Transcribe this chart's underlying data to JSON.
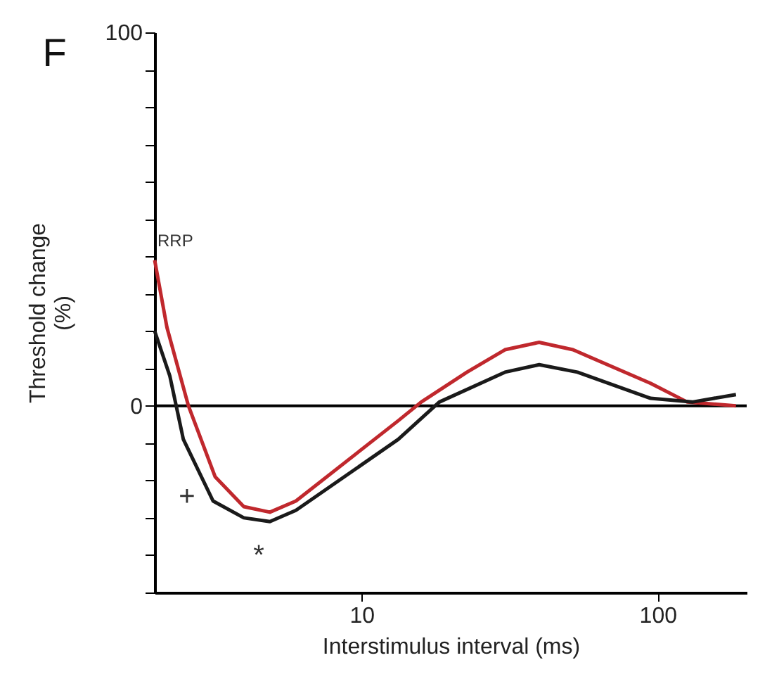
{
  "chart_data": {
    "type": "line",
    "title": "F",
    "xlabel": "Interstimulus interval (ms)",
    "ylabel": "Threshold change\n(%)",
    "log": "x",
    "grid": false,
    "marker": "none",
    "line_style": "solid",
    "xlim": [
      2,
      200
    ],
    "xticks": [
      10,
      100
    ],
    "ylim": [
      -50,
      100
    ],
    "yticks": [
      100,
      {
        "value": 90,
        "label": null
      },
      {
        "value": 80,
        "label": null
      },
      {
        "value": 70,
        "label": null
      },
      {
        "value": 60,
        "label": null
      },
      {
        "value": 50,
        "label": null
      },
      {
        "value": 40,
        "label": null
      },
      {
        "value": 30,
        "label": null
      },
      {
        "value": 20,
        "label": null
      },
      {
        "value": 10,
        "label": null
      },
      0,
      {
        "value": -10,
        "label": null
      },
      {
        "value": -20,
        "label": null
      },
      {
        "value": -30,
        "label": null
      },
      {
        "value": -40,
        "label": null
      },
      {
        "value": -50,
        "label": null
      }
    ],
    "series": [
      {
        "color": "#c0282d",
        "x": [
          2.0,
          2.2,
          2.6,
          3.2,
          4.0,
          4.9,
          6.0,
          13.3,
          15.9,
          22.7,
          30.5,
          39.8,
          51.8,
          94.7,
          126,
          184
        ],
        "values": [
          39,
          21,
          0,
          -19,
          -27,
          -28.5,
          -25.5,
          -4,
          1,
          9,
          15,
          17,
          15,
          6,
          1,
          0
        ]
      },
      {
        "color": "#1a1a1a",
        "x": [
          2.0,
          2.25,
          2.5,
          3.15,
          4.0,
          4.9,
          6.0,
          13.3,
          18.3,
          30.5,
          39.8,
          53.6,
          94.7,
          131,
          184
        ],
        "values": [
          20,
          8,
          -9,
          -25.5,
          -30,
          -31,
          -28,
          -9,
          1,
          9,
          11,
          9,
          2,
          1,
          3
        ]
      }
    ],
    "ref_lines": [
      {
        "axis": "y",
        "value": 0,
        "color": "#000000"
      }
    ],
    "annotations": [
      {
        "text": "RRP",
        "x": 2.0,
        "y": 39
      },
      "+",
      "*"
    ]
  }
}
